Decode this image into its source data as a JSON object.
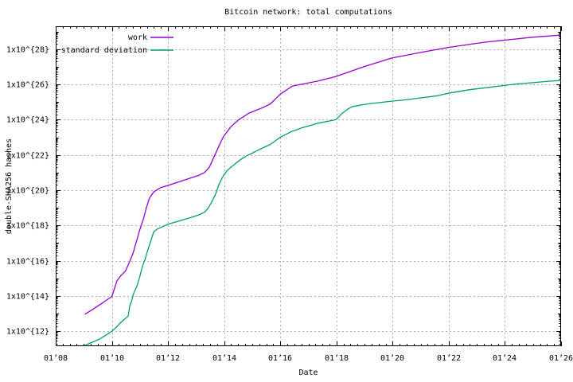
{
  "chart_data": {
    "type": "line",
    "title": "Bitcoin network: total computations",
    "xlabel": "Date",
    "ylabel": "double-SHA256 hashes",
    "x_axis": {
      "unit": "date (month'year)",
      "range_years": [
        2008,
        2026
      ],
      "tick_years": [
        2008,
        2010,
        2012,
        2014,
        2016,
        2018,
        2020,
        2022,
        2024,
        2026
      ],
      "tick_labels": [
        "01’08",
        "01’10",
        "01’12",
        "01’14",
        "01’16",
        "01’18",
        "01’20",
        "01’22",
        "01’24",
        "01’26"
      ],
      "minor_tick_interval_years": 0.25
    },
    "y_axis": {
      "scale": "log10",
      "range_log10": [
        11.15,
        29.3
      ],
      "labeled_exponents": [
        12,
        14,
        16,
        18,
        20,
        22,
        24,
        26,
        28
      ],
      "tick_labels": [
        "1x10^{12}",
        "1x10^{14}",
        "1x10^{16}",
        "1x10^{18}",
        "1x10^{20}",
        "1x10^{22}",
        "1x10^{24}",
        "1x10^{26}",
        "1x10^{28}"
      ]
    },
    "grid": {
      "visible": true,
      "style": "dashed",
      "color": "#ababab"
    },
    "legend": {
      "position": "top-left-inside",
      "entries": [
        {
          "label": "work",
          "color": "#9400d3"
        },
        {
          "label": "standard deviation",
          "color": "#009e73"
        }
      ]
    },
    "series": [
      {
        "name": "work",
        "color": "#9400d3",
        "points_year_log10": [
          [
            2009.05,
            12.97
          ],
          [
            2009.28,
            13.2
          ],
          [
            2009.62,
            13.55
          ],
          [
            2010.0,
            13.97
          ],
          [
            2010.18,
            14.85
          ],
          [
            2010.32,
            15.15
          ],
          [
            2010.49,
            15.42
          ],
          [
            2010.64,
            15.97
          ],
          [
            2010.75,
            16.4
          ],
          [
            2010.86,
            17.0
          ],
          [
            2010.98,
            17.68
          ],
          [
            2011.12,
            18.35
          ],
          [
            2011.23,
            19.0
          ],
          [
            2011.34,
            19.55
          ],
          [
            2011.49,
            19.9
          ],
          [
            2011.74,
            20.15
          ],
          [
            2012.0,
            20.27
          ],
          [
            2012.54,
            20.55
          ],
          [
            2013.1,
            20.85
          ],
          [
            2013.3,
            21.0
          ],
          [
            2013.47,
            21.3
          ],
          [
            2013.67,
            22.0
          ],
          [
            2013.87,
            22.7
          ],
          [
            2013.98,
            23.05
          ],
          [
            2014.24,
            23.6
          ],
          [
            2014.52,
            24.0
          ],
          [
            2014.89,
            24.38
          ],
          [
            2015.37,
            24.68
          ],
          [
            2015.65,
            24.9
          ],
          [
            2016.0,
            25.45
          ],
          [
            2016.42,
            25.9
          ],
          [
            2017.35,
            26.2
          ],
          [
            2017.98,
            26.45
          ],
          [
            2018.97,
            27.0
          ],
          [
            2019.97,
            27.5
          ],
          [
            2021.04,
            27.83
          ],
          [
            2021.98,
            28.1
          ],
          [
            2023.31,
            28.4
          ],
          [
            2023.92,
            28.5
          ],
          [
            2025.0,
            28.68
          ],
          [
            2025.99,
            28.8
          ]
        ]
      },
      {
        "name": "standard deviation",
        "color": "#009e73",
        "points_year_log10": [
          [
            2009.05,
            11.2
          ],
          [
            2009.56,
            11.55
          ],
          [
            2009.84,
            11.83
          ],
          [
            2010.0,
            12.0
          ],
          [
            2010.18,
            12.25
          ],
          [
            2010.32,
            12.5
          ],
          [
            2010.46,
            12.7
          ],
          [
            2010.58,
            12.85
          ],
          [
            2010.64,
            13.45
          ],
          [
            2010.7,
            13.7
          ],
          [
            2010.78,
            14.17
          ],
          [
            2010.89,
            14.55
          ],
          [
            2010.98,
            15.0
          ],
          [
            2011.06,
            15.5
          ],
          [
            2011.12,
            15.83
          ],
          [
            2011.18,
            16.05
          ],
          [
            2011.26,
            16.5
          ],
          [
            2011.4,
            17.18
          ],
          [
            2011.49,
            17.63
          ],
          [
            2011.6,
            17.78
          ],
          [
            2011.83,
            17.95
          ],
          [
            2012.0,
            18.07
          ],
          [
            2012.39,
            18.25
          ],
          [
            2012.82,
            18.45
          ],
          [
            2013.1,
            18.6
          ],
          [
            2013.3,
            18.75
          ],
          [
            2013.44,
            19.0
          ],
          [
            2013.58,
            19.4
          ],
          [
            2013.7,
            19.8
          ],
          [
            2013.81,
            20.3
          ],
          [
            2013.9,
            20.6
          ],
          [
            2013.98,
            20.85
          ],
          [
            2014.1,
            21.1
          ],
          [
            2014.24,
            21.3
          ],
          [
            2014.43,
            21.55
          ],
          [
            2014.6,
            21.75
          ],
          [
            2014.8,
            21.95
          ],
          [
            2015.0,
            22.1
          ],
          [
            2015.28,
            22.33
          ],
          [
            2015.65,
            22.6
          ],
          [
            2016.0,
            23.0
          ],
          [
            2016.36,
            23.3
          ],
          [
            2016.79,
            23.55
          ],
          [
            2017.35,
            23.8
          ],
          [
            2017.98,
            24.0
          ],
          [
            2018.2,
            24.35
          ],
          [
            2018.4,
            24.6
          ],
          [
            2018.58,
            24.75
          ],
          [
            2019.05,
            24.88
          ],
          [
            2019.97,
            25.05
          ],
          [
            2020.47,
            25.13
          ],
          [
            2021.04,
            25.24
          ],
          [
            2021.6,
            25.36
          ],
          [
            2021.98,
            25.5
          ],
          [
            2022.74,
            25.7
          ],
          [
            2023.31,
            25.81
          ],
          [
            2023.92,
            25.93
          ],
          [
            2024.44,
            26.03
          ],
          [
            2025.0,
            26.1
          ],
          [
            2025.55,
            26.18
          ],
          [
            2025.99,
            26.22
          ]
        ]
      }
    ]
  }
}
